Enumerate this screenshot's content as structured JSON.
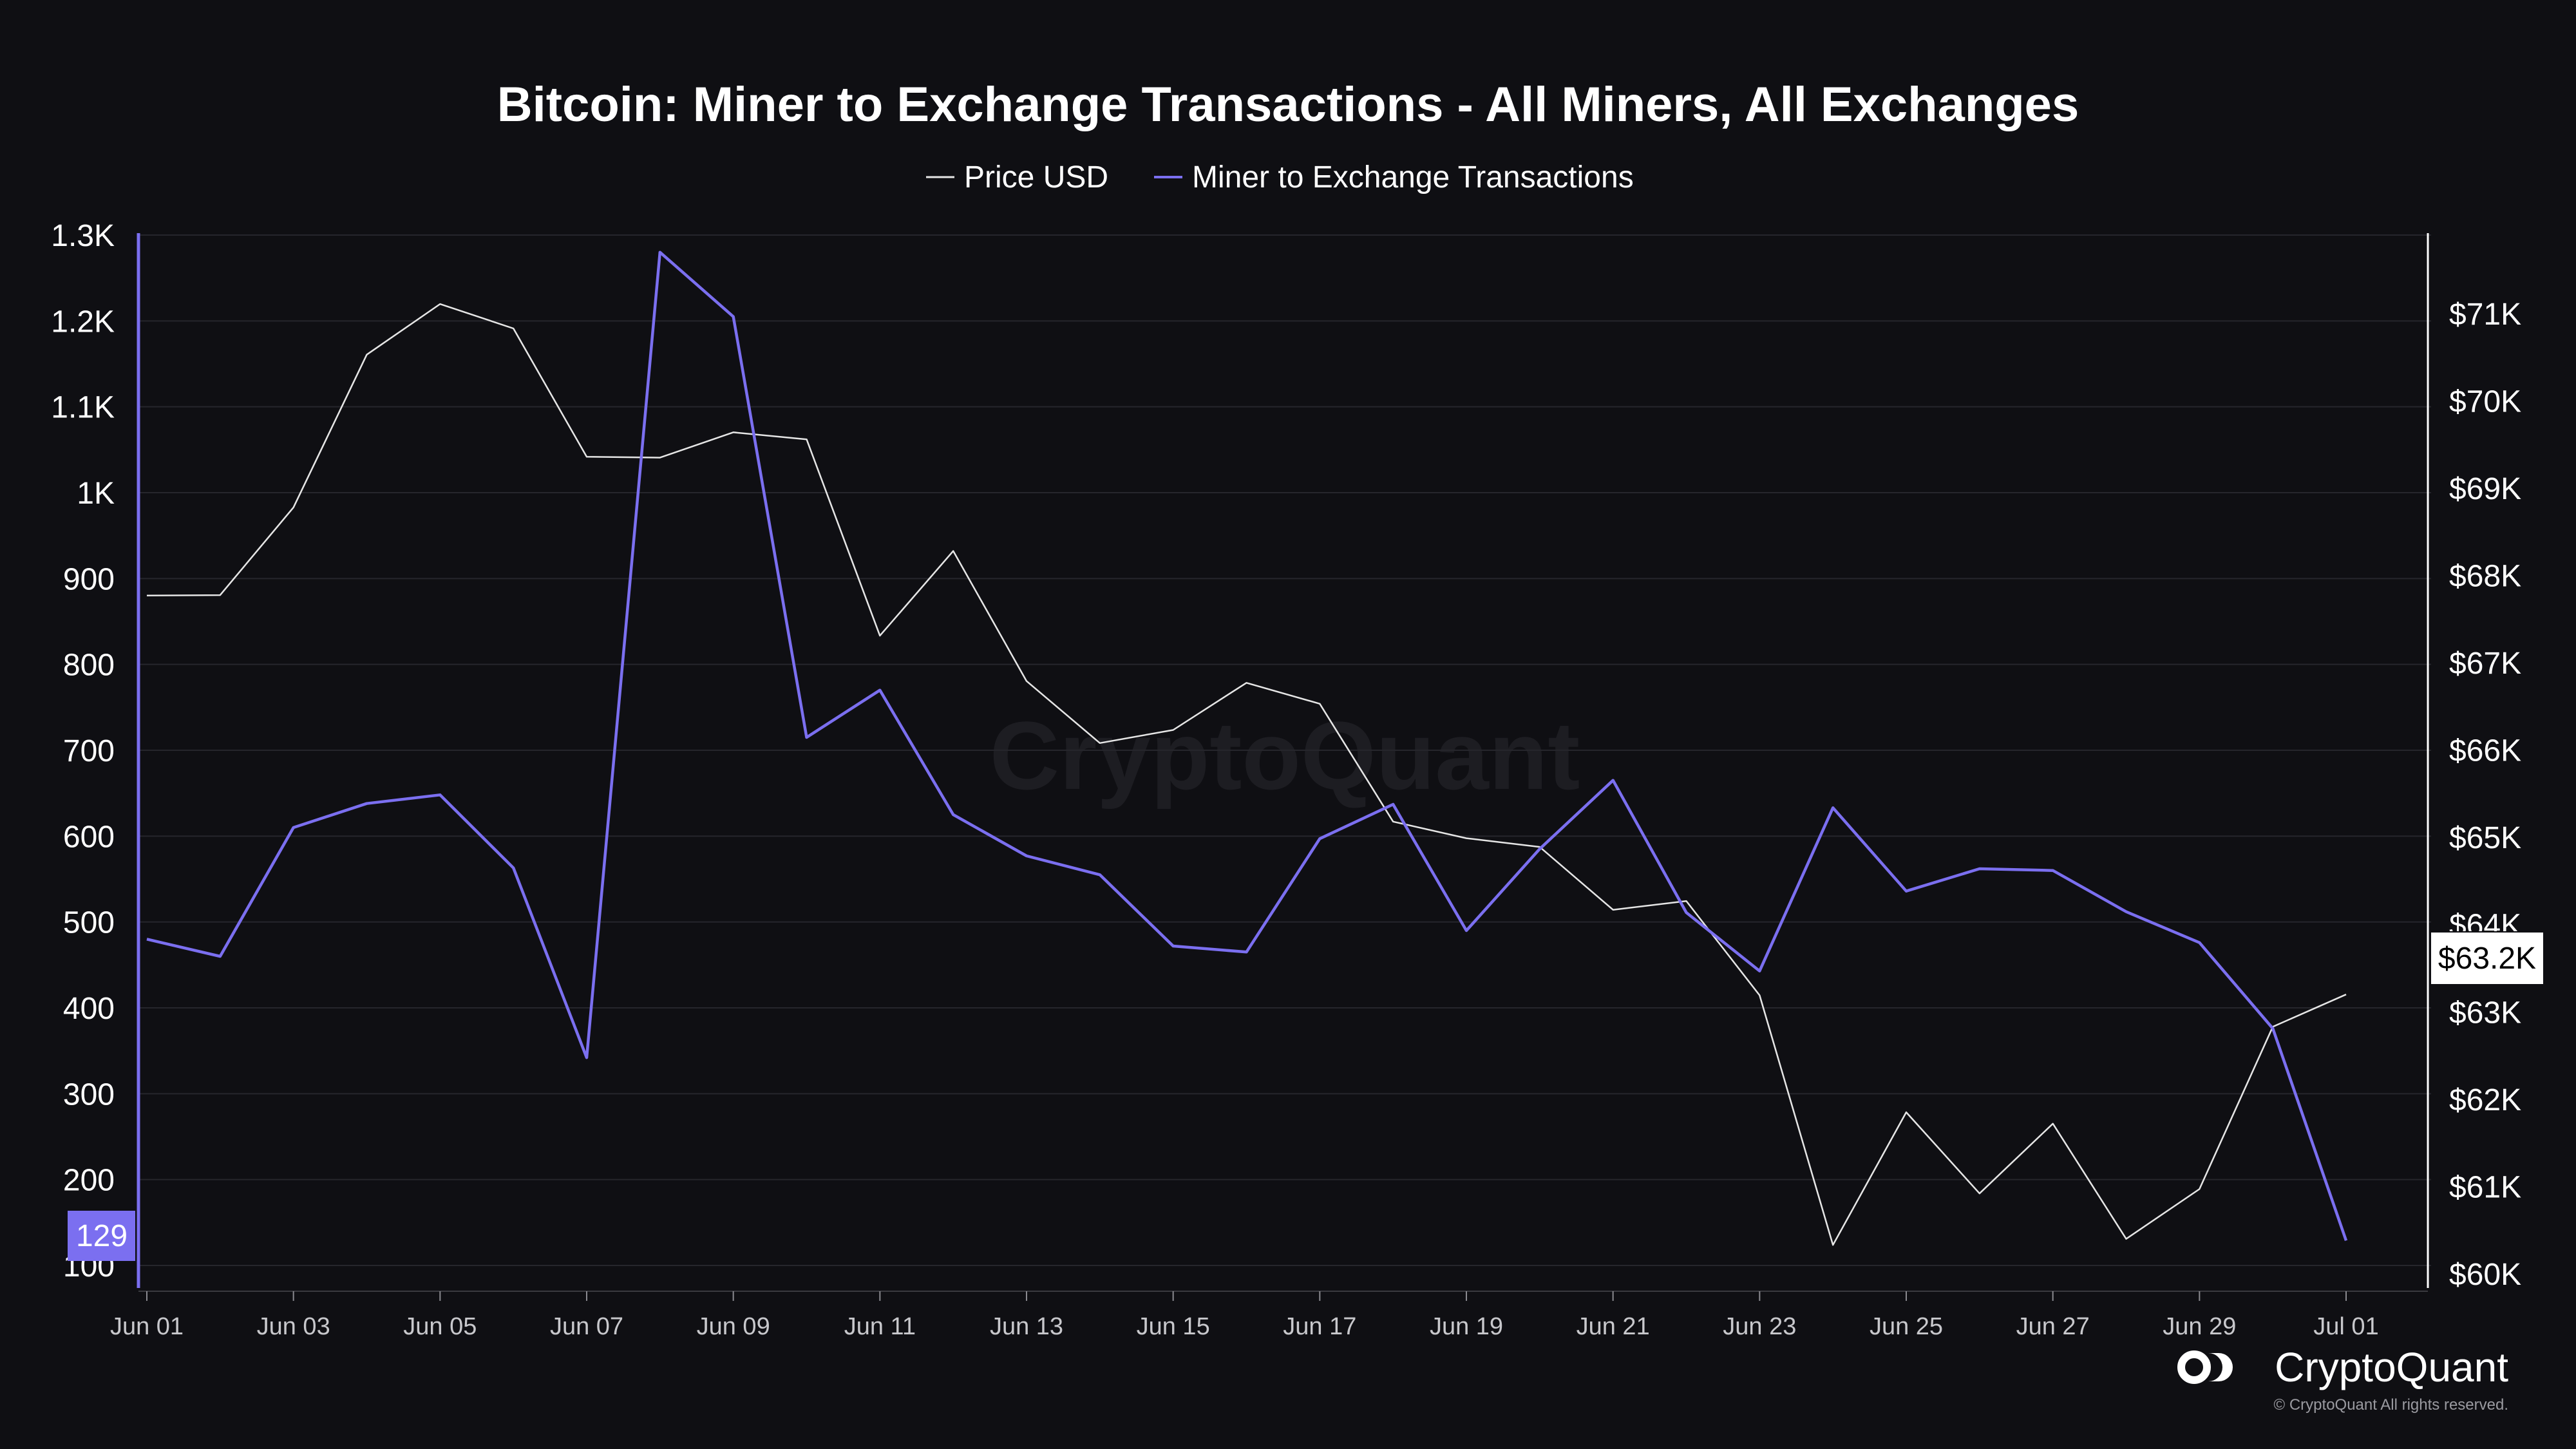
{
  "chart_data": {
    "type": "line",
    "title": "Bitcoin: Miner to Exchange Transactions - All Miners, All Exchanges",
    "x": [
      "Jun 01",
      "Jun 02",
      "Jun 03",
      "Jun 04",
      "Jun 05",
      "Jun 06",
      "Jun 07",
      "Jun 08",
      "Jun 09",
      "Jun 10",
      "Jun 11",
      "Jun 12",
      "Jun 13",
      "Jun 14",
      "Jun 15",
      "Jun 16",
      "Jun 17",
      "Jun 18",
      "Jun 19",
      "Jun 20",
      "Jun 21",
      "Jun 22",
      "Jun 23",
      "Jun 24",
      "Jun 25",
      "Jun 26",
      "Jun 27",
      "Jun 28",
      "Jun 29",
      "Jun 30",
      "Jul 01"
    ],
    "x_tick_labels": [
      "Jun 01",
      "Jun 03",
      "Jun 05",
      "Jun 07",
      "Jun 09",
      "Jun 11",
      "Jun 13",
      "Jun 15",
      "Jun 17",
      "Jun 19",
      "Jun 21",
      "Jun 23",
      "Jun 25",
      "Jun 27",
      "Jun 29",
      "Jul 01"
    ],
    "series": [
      {
        "name": "Price USD",
        "axis": "right",
        "color": "#e6e6e6",
        "values": [
          67770,
          67775,
          68780,
          70530,
          71110,
          70830,
          69360,
          69350,
          69640,
          69560,
          67310,
          68280,
          66790,
          66080,
          66230,
          66770,
          66530,
          65180,
          64990,
          64890,
          64170,
          64270,
          63190,
          60330,
          61850,
          60920,
          61720,
          60400,
          60970,
          62830,
          63200
        ]
      },
      {
        "name": "Miner to Exchange Transactions",
        "axis": "left",
        "color": "#7b6ff0",
        "values": [
          480,
          460,
          610,
          638,
          648,
          563,
          342,
          1280,
          1205,
          715,
          770,
          625,
          577,
          555,
          472,
          465,
          597,
          637,
          490,
          585,
          665,
          511,
          443,
          633,
          536,
          562,
          560,
          512,
          476,
          376,
          129
        ]
      }
    ],
    "left_axis": {
      "ticks": [
        "100",
        "200",
        "300",
        "400",
        "500",
        "600",
        "700",
        "800",
        "900",
        "1K",
        "1.1K",
        "1.2K",
        "1.3K"
      ],
      "range": [
        70,
        1300
      ]
    },
    "right_axis": {
      "ticks": [
        "$60K",
        "$61K",
        "$62K",
        "$63K",
        "$64K",
        "$65K",
        "$66K",
        "$67K",
        "$68K",
        "$69K",
        "$70K",
        "$71K"
      ],
      "range": [
        59800,
        71900
      ]
    },
    "current_left_label": "129",
    "current_right_label": "$63.2K",
    "legend_position": "top-center",
    "grid": true
  },
  "watermark": "CryptoQuant",
  "branding": {
    "name": "CryptoQuant",
    "copyright": "© CryptoQuant All rights reserved.",
    "logo_icon": "cryptoquant-logo-icon"
  },
  "colors": {
    "background": "#0f0f13",
    "grid": "#26262c",
    "price": "#e6e6e6",
    "transactions": "#7b6ff0"
  }
}
